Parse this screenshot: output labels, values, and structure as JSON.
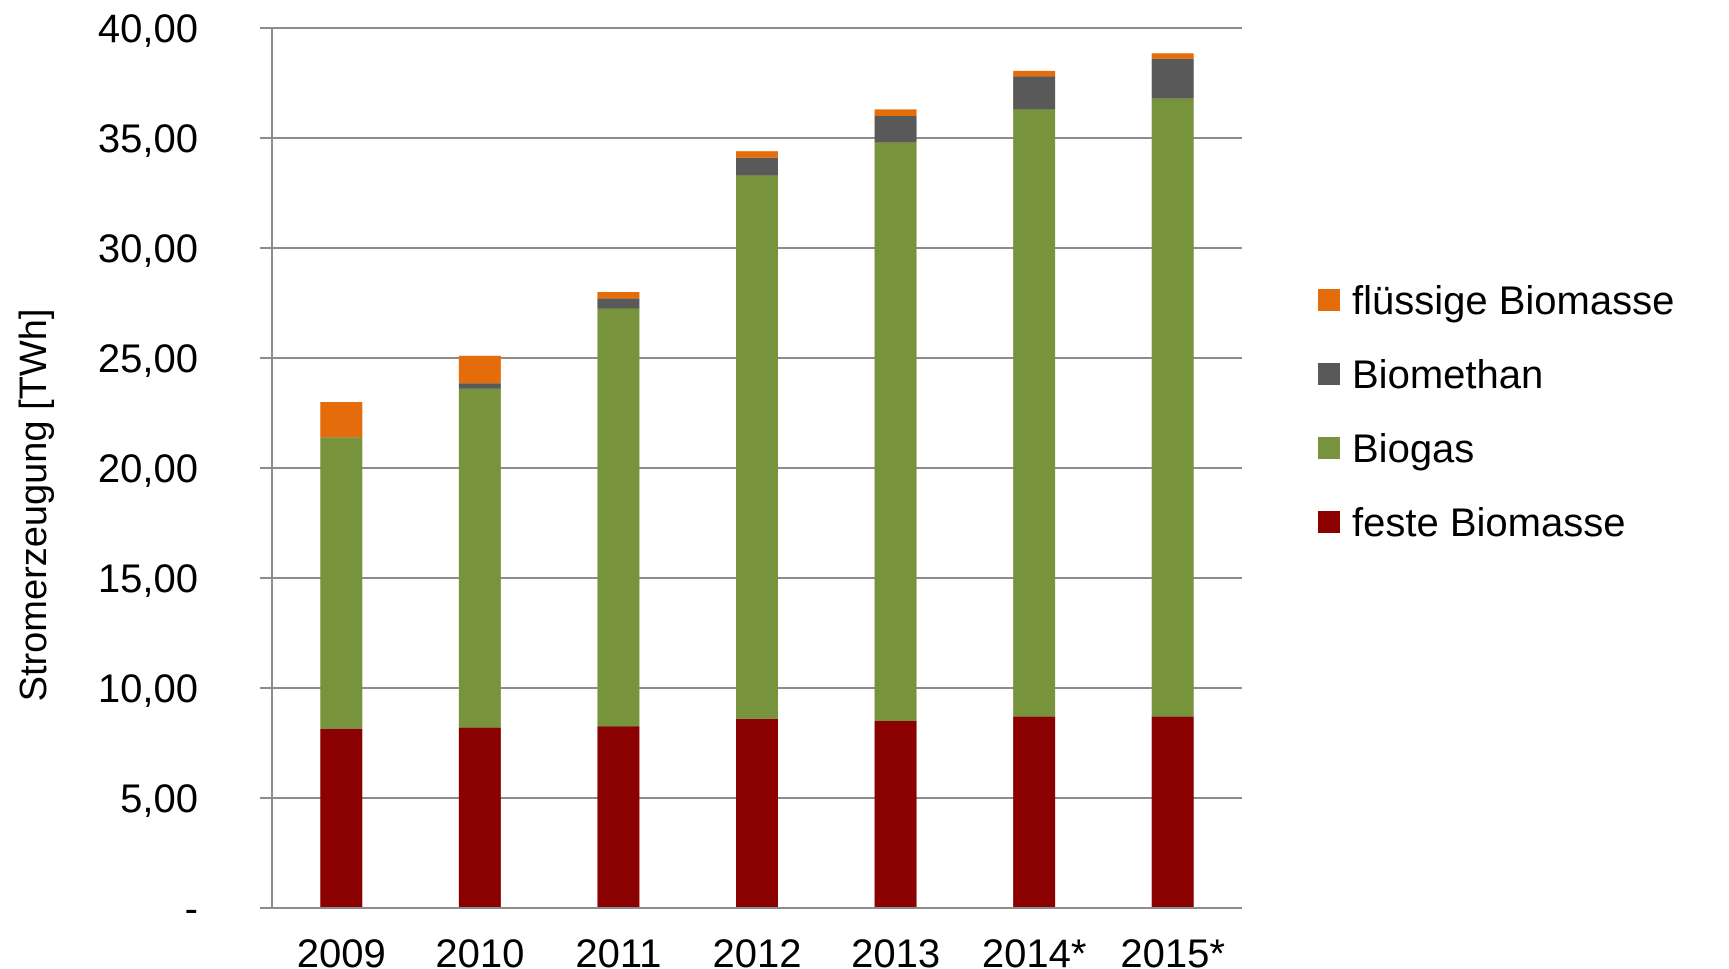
{
  "chart_data": {
    "type": "bar",
    "stacked": true,
    "categories": [
      "2009",
      "2010",
      "2011",
      "2012",
      "2013",
      "2014*",
      "2015*"
    ],
    "series": [
      {
        "name": "feste Biomasse",
        "color": "#8b0000",
        "values": [
          8.15,
          8.2,
          8.25,
          8.6,
          8.5,
          8.7,
          8.7
        ]
      },
      {
        "name": "Biogas",
        "color": "#77933c",
        "values": [
          13.25,
          15.4,
          19.0,
          24.7,
          26.3,
          27.6,
          28.1
        ]
      },
      {
        "name": "Biomethan",
        "color": "#595959",
        "values": [
          0.0,
          0.25,
          0.45,
          0.8,
          1.2,
          1.5,
          1.8
        ]
      },
      {
        "name": "flüssige Biomasse",
        "color": "#e46c0a",
        "values": [
          1.6,
          1.25,
          0.3,
          0.3,
          0.3,
          0.25,
          0.25
        ]
      }
    ],
    "ylabel": "Stromerzeugung [TWh]",
    "xlabel": "",
    "ylim": [
      0,
      40
    ],
    "yticks": [
      {
        "value": 0,
        "label": "-"
      },
      {
        "value": 5,
        "label": "5,00"
      },
      {
        "value": 10,
        "label": "10,00"
      },
      {
        "value": 15,
        "label": "15,00"
      },
      {
        "value": 20,
        "label": "20,00"
      },
      {
        "value": 25,
        "label": "25,00"
      },
      {
        "value": 30,
        "label": "30,00"
      },
      {
        "value": 35,
        "label": "35,00"
      },
      {
        "value": 40,
        "label": "40,00"
      }
    ],
    "legend_order": [
      "flüssige Biomasse",
      "Biomethan",
      "Biogas",
      "feste Biomasse"
    ],
    "legend_position": "right",
    "grid": true
  }
}
